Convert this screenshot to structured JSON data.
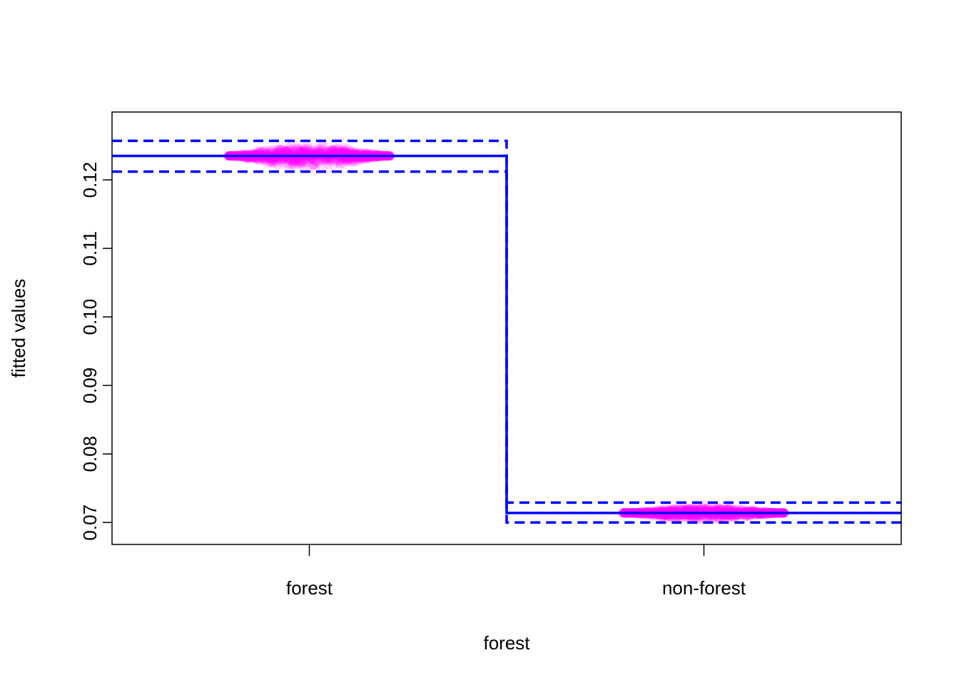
{
  "chart_data": {
    "type": "scatter",
    "title": "",
    "xlabel": "forest",
    "ylabel": "fitted values",
    "categories": [
      "forest",
      "non-forest"
    ],
    "ylim": [
      0.0668,
      0.1299
    ],
    "y_ticks": [
      0.07,
      0.08,
      0.09,
      0.1,
      0.11,
      0.12
    ],
    "y_tick_labels": [
      "0.07",
      "0.08",
      "0.09",
      "0.10",
      "0.11",
      "0.12"
    ],
    "fit": {
      "estimate": [
        0.1235,
        0.0714
      ],
      "lower": [
        0.1212,
        0.07
      ],
      "upper": [
        0.1257,
        0.0729
      ]
    },
    "partial_residuals": [
      {
        "category": "forest",
        "center": 0.1235,
        "min": 0.1198,
        "max": 0.1276
      },
      {
        "category": "non-forest",
        "center": 0.0714,
        "min": 0.0693,
        "max": 0.0738
      }
    ],
    "colors": {
      "fit_line": "#0000ff",
      "points": "#ff00ff"
    },
    "grid": false,
    "legend": "none"
  }
}
